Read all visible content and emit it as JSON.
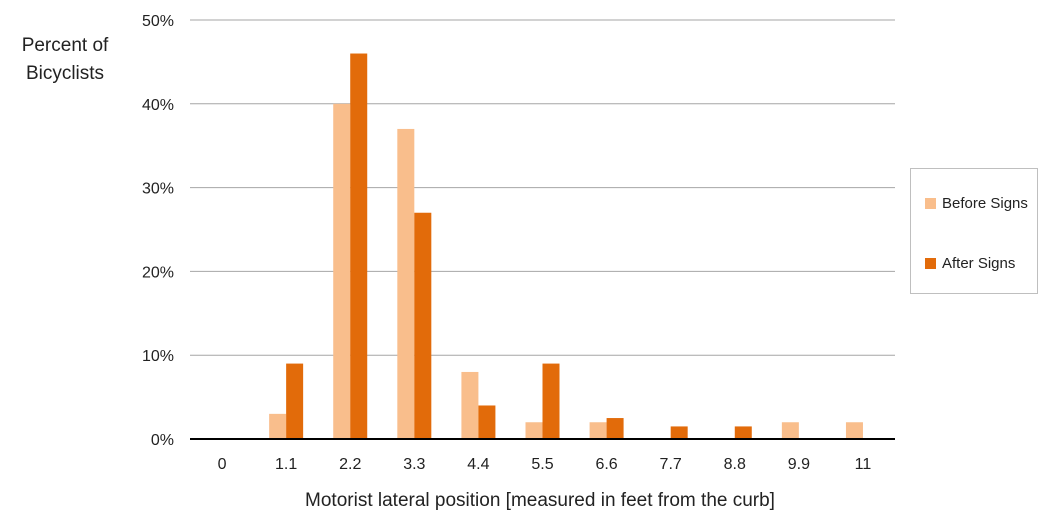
{
  "chart_data": {
    "type": "bar",
    "ylabel": "Percent of Bicyclists",
    "ylabel_lines": [
      "Percent of",
      "Bicyclists"
    ],
    "xlabel": "Motorist lateral position [measured in feet from the curb]",
    "categories": [
      "0",
      "1.1",
      "2.2",
      "3.3",
      "4.4",
      "5.5",
      "6.6",
      "7.7",
      "8.8",
      "9.9",
      "11"
    ],
    "y_ticks": [
      "0%",
      "10%",
      "20%",
      "30%",
      "40%",
      "50%"
    ],
    "ylim": [
      0,
      50
    ],
    "grid": true,
    "legend_position": "right",
    "series": [
      {
        "name": "Before Signs",
        "color": "#f9be8c",
        "values": [
          0,
          3,
          40,
          37,
          8,
          2,
          2,
          0,
          0,
          2,
          2
        ]
      },
      {
        "name": "After Signs",
        "color": "#e26b0a",
        "values": [
          0,
          9,
          46,
          27,
          4,
          9,
          2.5,
          1.5,
          1.5,
          0,
          0
        ]
      }
    ]
  }
}
